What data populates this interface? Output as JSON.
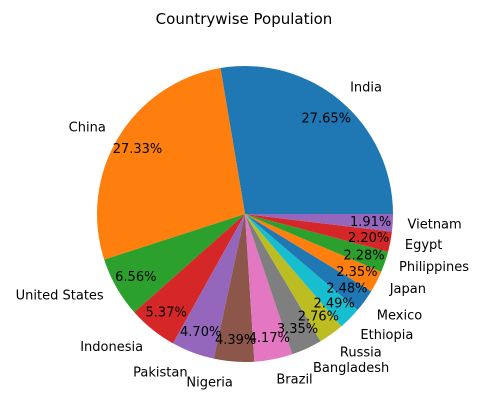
{
  "chart_data": {
    "type": "pie",
    "title": "Countrywise Population",
    "categories": [
      "India",
      "China",
      "United States",
      "Indonesia",
      "Pakistan",
      "Nigeria",
      "Brazil",
      "Bangladesh",
      "Russia",
      "Ethiopia",
      "Mexico",
      "Japan",
      "Philippines",
      "Egypt",
      "Vietnam"
    ],
    "values": [
      27.65,
      27.33,
      6.56,
      5.37,
      4.7,
      4.39,
      4.17,
      3.35,
      2.76,
      2.49,
      2.48,
      2.35,
      2.28,
      2.2,
      1.91
    ],
    "percent_labels": [
      "27.65%",
      "27.33%",
      "6.56%",
      "5.37%",
      "4.70%",
      "4.39%",
      "4.17%",
      "3.35%",
      "2.76%",
      "2.49%",
      "2.48%",
      "2.35%",
      "2.28%",
      "2.20%",
      "1.91%"
    ],
    "colors": [
      "#1f77b4",
      "#ff7f0e",
      "#2ca02c",
      "#d62728",
      "#9467bd",
      "#8c564b",
      "#e377c2",
      "#7f7f7f",
      "#bcbd22",
      "#17becf",
      "#1f77b4",
      "#ff7f0e",
      "#2ca02c",
      "#d62728",
      "#9467bd"
    ],
    "start_angle_deg": 0,
    "direction": "counterclockwise"
  }
}
